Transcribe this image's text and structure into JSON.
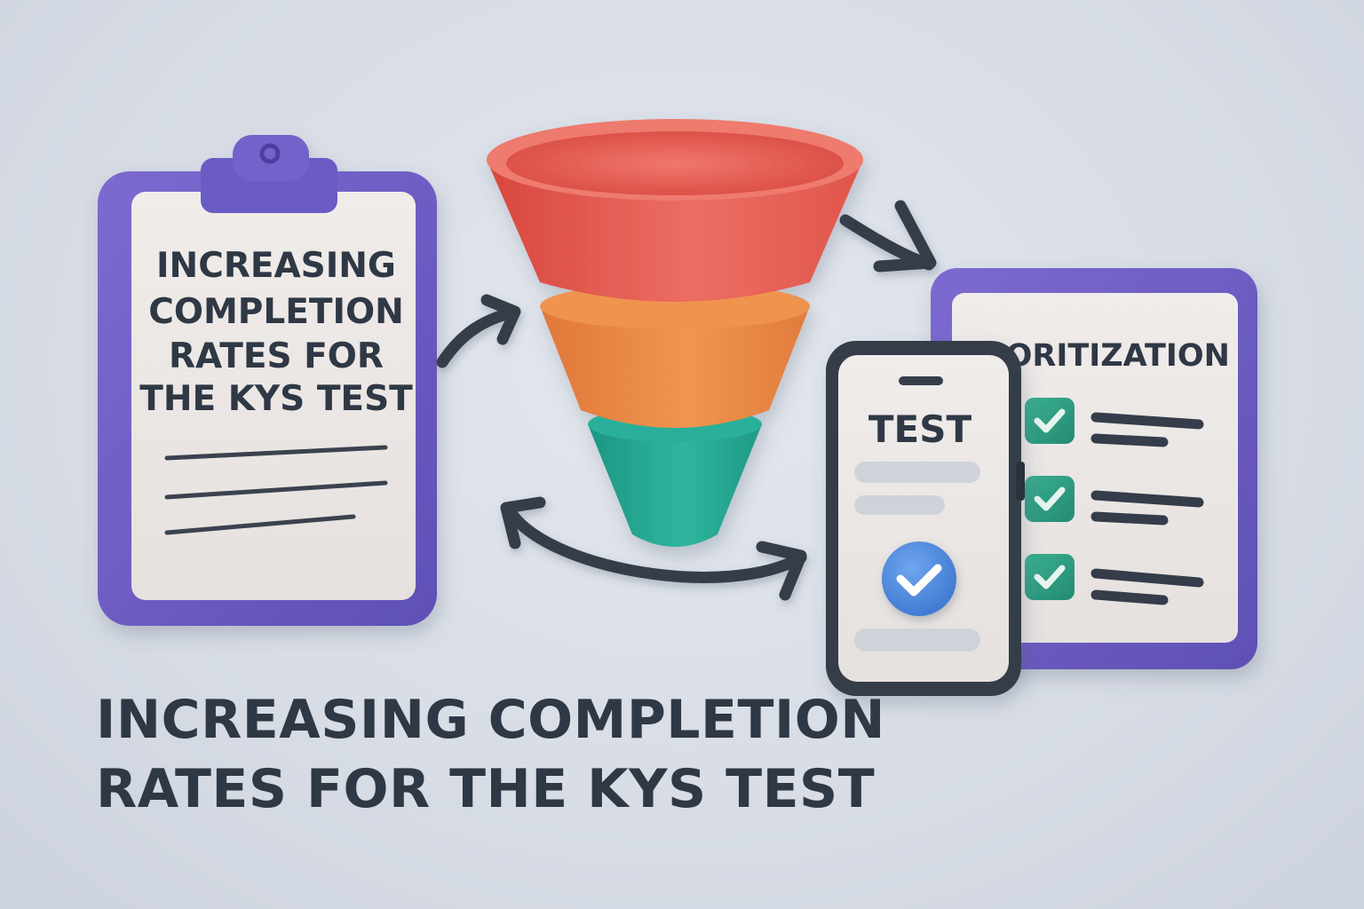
{
  "clipboard": {
    "title_lines": [
      "INCREASING",
      "COMPLETION",
      "RATES FOR",
      "THE KYS TEST"
    ]
  },
  "phone": {
    "title": "TEST"
  },
  "priority_card": {
    "title": "PRIORITIZATION"
  },
  "headline": {
    "line1": "INCREASING COMPLETION",
    "line2": "RATES FOR THE KYS TEST"
  },
  "colors": {
    "background": "#d9dee6",
    "purple_frame": "#6f5fc4",
    "funnel_top": "#e8655a",
    "funnel_middle": "#ec8a48",
    "funnel_bottom": "#24a892",
    "check_green": "#2f9a7f",
    "check_blue": "#4a86dc",
    "ink": "#2f3845"
  }
}
